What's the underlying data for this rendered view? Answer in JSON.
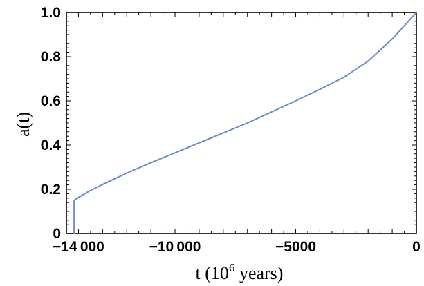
{
  "chart_data": {
    "type": "line",
    "title": "",
    "xlabel": {
      "prefix": "t (10",
      "exponent": "6",
      "suffix": "  years)"
    },
    "ylabel": "a(t)",
    "xlim": [
      -14500,
      0
    ],
    "ylim": [
      0,
      1.0
    ],
    "x_ticks": [
      {
        "value": -14000,
        "label": "−14 000"
      },
      {
        "value": -10000,
        "label": "−10 000"
      },
      {
        "value": -5000,
        "label": "−5000"
      },
      {
        "value": 0,
        "label": "0"
      }
    ],
    "y_ticks": [
      {
        "value": 0,
        "label": "0"
      },
      {
        "value": 0.2,
        "label": "0.2"
      },
      {
        "value": 0.4,
        "label": "0.4"
      },
      {
        "value": 0.6,
        "label": "0.6"
      },
      {
        "value": 0.8,
        "label": "0.8"
      },
      {
        "value": 1.0,
        "label": "1.0"
      }
    ],
    "grid": false,
    "series": [
      {
        "color": "#6b8cc4",
        "x": [
          -14180,
          -14180,
          -14000,
          -13500,
          -13000,
          -12000,
          -11000,
          -10000,
          -9000,
          -8000,
          -7000,
          -6000,
          -5000,
          -4000,
          -3000,
          -2000,
          -1000,
          0
        ],
        "y": [
          0.0,
          0.15,
          0.163,
          0.195,
          0.222,
          0.273,
          0.32,
          0.365,
          0.41,
          0.455,
          0.5,
          0.55,
          0.6,
          0.652,
          0.707,
          0.78,
          0.88,
          1.0
        ]
      }
    ]
  }
}
